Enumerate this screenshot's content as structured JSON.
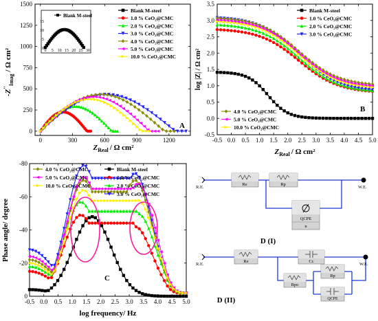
{
  "figure_panels": [
    "A",
    "B",
    "C",
    "D (I)",
    "D (II)"
  ],
  "series_styles": [
    {
      "name": "Blank M-steel",
      "color": "#000000",
      "marker": "square"
    },
    {
      "name": "1.0 % CeO₂@CMC",
      "color": "#ff0000",
      "marker": "circle"
    },
    {
      "name": "2.0 % CeO₂@CMC",
      "color": "#00ee00",
      "marker": "triangle-up"
    },
    {
      "name": "3.0 % CeO₂@CMC",
      "color": "#1f1fff",
      "marker": "triangle-down"
    },
    {
      "name": "4.0 % CeO₂@CMC",
      "color": "#8b8b00",
      "marker": "diamond"
    },
    {
      "name": "5.0 % CeO₂@CMC",
      "color": "#ff00ff",
      "marker": "triangle-left"
    },
    {
      "name": "10.0 % CeO₂@CMC",
      "color": "#ffee00",
      "marker": "triangle-right"
    }
  ],
  "chart_data": [
    {
      "panel": "A",
      "type": "scatter",
      "subtype": "nyquist",
      "xlabel": "Z′Real / Ω cm²",
      "ylabel": "-Z′′Imag / Ω cm²",
      "xlim": [
        -50,
        1400
      ],
      "ylim": [
        -50,
        1500
      ],
      "xticks": [
        0,
        300,
        600,
        900,
        1200
      ],
      "yticks": [
        0,
        250,
        500,
        750,
        1000,
        1250,
        1500
      ],
      "series": [
        {
          "name": "Blank M-steel",
          "x_end": 27,
          "y_peak": 10
        },
        {
          "name": "1.0 % CeO₂@CMC",
          "x_end": 470,
          "y_peak": 240
        },
        {
          "name": "2.0 % CeO₂@CMC",
          "x_end": 720,
          "y_peak": 310
        },
        {
          "name": "3.0 % CeO₂@CMC",
          "x_end": 1360,
          "y_peak": 460
        },
        {
          "name": "4.0 % CeO₂@CMC",
          "x_end": 1250,
          "y_peak": 460
        },
        {
          "name": "5.0 % CeO₂@CMC",
          "x_end": 1100,
          "y_peak": 430
        },
        {
          "name": "10.0 % CeO₂@CMC",
          "x_end": 1020,
          "y_peak": 400
        }
      ],
      "inset": {
        "legend": "Blank M-steel",
        "xlim": [
          0,
          30
        ],
        "ylim": [
          0,
          15
        ],
        "xticks": [
          0,
          5,
          10,
          15,
          20,
          25,
          30
        ],
        "yticks": [
          0,
          5,
          10,
          15
        ],
        "x_end": 27,
        "y_peak": 10
      }
    },
    {
      "panel": "B",
      "type": "line",
      "subtype": "bode-modulus",
      "xlabel": "Z′Real / Ω cm²",
      "ylabel": "log |Z| / Ω cm²",
      "xlim": [
        -0.5,
        5.0
      ],
      "ylim": [
        -0.5,
        3.5
      ],
      "xticks": [
        -0.5,
        0.0,
        0.5,
        1.0,
        1.5,
        2.0,
        2.5,
        3.0,
        3.5,
        4.0,
        4.5,
        5.0
      ],
      "yticks": [
        -0.5,
        0.0,
        0.5,
        1.0,
        1.5,
        2.0,
        2.5,
        3.0,
        3.5
      ],
      "series": [
        {
          "name": "Blank M-steel",
          "high": 1.42,
          "low": 0.0,
          "mid": 1.3
        },
        {
          "name": "1.0 % CeO₂@CMC",
          "high": 2.75,
          "low": 0.78,
          "mid": 2.0
        },
        {
          "name": "2.0 % CeO₂@CMC",
          "high": 2.9,
          "low": 0.8,
          "mid": 2.3
        },
        {
          "name": "3.0 % CeO₂@CMC",
          "high": 3.12,
          "low": 0.83,
          "mid": 2.7
        },
        {
          "name": "4.0 % CeO₂@CMC",
          "high": 3.1,
          "low": 1.0,
          "mid": 2.6
        },
        {
          "name": "5.0 % CeO₂@CMC",
          "high": 3.05,
          "low": 0.95,
          "mid": 2.5
        },
        {
          "name": "10.0 % CeO₂@CMC",
          "high": 3.0,
          "low": 0.9,
          "mid": 2.4
        }
      ]
    },
    {
      "panel": "C",
      "type": "line",
      "subtype": "bode-phase",
      "xlabel": "log frequency/ Hz",
      "ylabel": "Phase angle/ degree",
      "xlim": [
        -0.5,
        5.0
      ],
      "ylim": [
        0,
        -80
      ],
      "xticks": [
        -0.5,
        0.0,
        0.5,
        1.0,
        1.5,
        2.0,
        2.5,
        3.0,
        3.5,
        4.0,
        4.5,
        5.0
      ],
      "yticks": [
        0,
        -20,
        -40,
        -60,
        -80
      ],
      "series": [
        {
          "name": "Blank M-steel",
          "start": -4,
          "end": 0,
          "peaks": [
            [
              1.7,
              -48
            ]
          ]
        },
        {
          "name": "1.0 % CeO₂@CMC",
          "start": -15,
          "end": -2,
          "peaks": [
            [
              1.3,
              -49
            ],
            [
              3.2,
              -42
            ]
          ]
        },
        {
          "name": "2.0 % CeO₂@CMC",
          "start": -18,
          "end": -2,
          "peaks": [
            [
              1.3,
              -57
            ],
            [
              3.3,
              -50
            ]
          ]
        },
        {
          "name": "3.0 % CeO₂@CMC",
          "start": -28,
          "end": -2,
          "peaks": [
            [
              1.4,
              -79
            ],
            [
              3.2,
              -74
            ]
          ]
        },
        {
          "name": "4.0 % CeO₂@CMC",
          "start": -22,
          "end": -2,
          "peaks": [
            [
              1.4,
              -70
            ],
            [
              3.2,
              -70
            ]
          ]
        },
        {
          "name": "5.0 % CeO₂@CMC",
          "start": -24,
          "end": -2,
          "peaks": [
            [
              1.4,
              -72
            ],
            [
              3.3,
              -68
            ]
          ]
        },
        {
          "name": "10.0 % CeO₂@CMC",
          "start": -20,
          "end": -2,
          "peaks": [
            [
              1.4,
              -64
            ],
            [
              3.3,
              -58
            ]
          ]
        }
      ]
    }
  ],
  "panel_a": {
    "tag": "A",
    "ylabel_z": "Z",
    "ylabel_sup": "′′",
    "ylabel_sub": "Imag",
    "ylabel_unit": " / Ω cm²",
    "xlabel_z": "Z",
    "xlabel_sub": "Real",
    "xlabel_unit": "/ Ω cm²",
    "xticks": [
      "0",
      "300",
      "600",
      "900",
      "1200"
    ],
    "yticks": [
      "0",
      "250",
      "500",
      "750",
      "1000",
      "1250",
      "1500"
    ],
    "legend": [
      "Blank M-steel",
      "1.0 % CeO₂@CMC",
      "2.0 % CeO₂@CMC",
      "3.0 % CeO₂@CMC",
      "4.0 % CeO₂@CMC",
      "5.0 % CeO₂@CMC",
      "10.0 % CeO₂@CMC"
    ],
    "inset_legend": "Blank M-steel",
    "inset_xticks": [
      "0",
      "5",
      "10",
      "15",
      "20",
      "25",
      "30"
    ],
    "inset_yticks": [
      "0",
      "5",
      "10",
      "15"
    ]
  },
  "panel_b": {
    "tag": "B",
    "ylabel": "log |Z| / Ω cm²",
    "xlabel_z": "Z",
    "xlabel_sub": "Real",
    "xlabel_unit": "/ Ω cm²",
    "xticks": [
      "-0.5",
      "0.0",
      "0.5",
      "1.0",
      "1.5",
      "2.0",
      "2.5",
      "3.0",
      "3.5",
      "4.0",
      "4.5",
      "5.0"
    ],
    "yticks": [
      "-0.5",
      "0.0",
      "0.5",
      "1.0",
      "1.5",
      "2.0",
      "2.5",
      "3.0",
      "3.5"
    ],
    "legend_top": [
      "Blank M-steel",
      "1.0 % CeO₂@CMC",
      "2.0 % CeO₂@CMC",
      "3.0 % CeO₂@CMC"
    ],
    "legend_bottom": [
      "4.0 % CeO₂@CMC",
      "5.0 % CeO₂@CMC",
      "10.0 % CeO₂@CMC"
    ]
  },
  "panel_c": {
    "tag": "C",
    "ylabel": "Phase angle/ degree",
    "xlabel": "log frequency/ Hz",
    "xticks": [
      "-0.5",
      "0.0",
      "0.5",
      "1.0",
      "1.5",
      "2.0",
      "2.5",
      "3.0",
      "3.5",
      "4.0",
      "4.5",
      "5.0"
    ],
    "yticks": [
      "0",
      "-20",
      "-40",
      "-60",
      "-80"
    ],
    "legend_left": [
      "4.0 % CeO₂@CMC",
      "5.0 % CeO₂@CMC",
      "10.0 % CeO₂@CMC"
    ],
    "legend_right": [
      "Blank M-steel",
      "1.0 % CeO₂@CMC",
      "2.0 % CeO₂@CMC",
      "3.0 % CeO₂@CMC"
    ]
  },
  "circuit_1": {
    "caption": "D (I)",
    "re_label": "R.E.",
    "we_label": "W.E.",
    "resistor1": "Re",
    "resistor2": "Rp",
    "cpe": "QCPE",
    "cpe_n": "n"
  },
  "circuit_2": {
    "caption": "D (II)",
    "re_label": "R.E.",
    "we_label": "W.E.",
    "resistor1": "Re",
    "capacitor": "Cc",
    "resistor_po": "Rpo",
    "resistor_p": "Rp",
    "cpe": "QCPE"
  }
}
